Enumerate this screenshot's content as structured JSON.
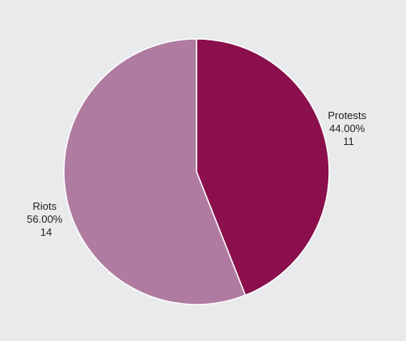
{
  "chart_data": {
    "type": "pie",
    "title": "",
    "slices": [
      {
        "label": "Protests",
        "value": 11,
        "percent": "44.00%",
        "color": "#8a0f4c"
      },
      {
        "label": "Riots",
        "value": 14,
        "percent": "56.00%",
        "color": "#b07ba1"
      }
    ],
    "start_angle": "12 o'clock",
    "direction": "clockwise",
    "legend": "none",
    "labels": "outside"
  },
  "colors": {
    "background": "#e9eaec",
    "slice_border": "#ffffff",
    "label_text": "#222222"
  }
}
